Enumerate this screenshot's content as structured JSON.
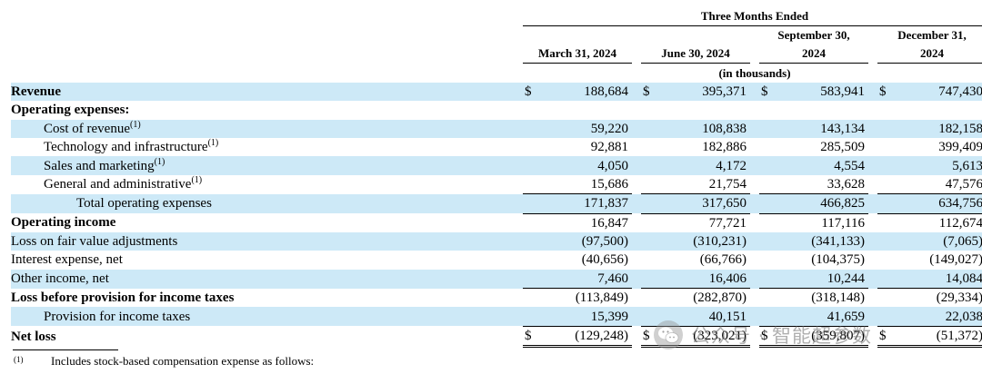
{
  "header": {
    "period_group": "Three Months Ended",
    "columns": [
      "March 31, 2024",
      "June 30, 2024",
      "September 30, 2024",
      "December 31, 2024"
    ],
    "col3_line1": "September 30,",
    "col3_line2": "2024",
    "col4_line1": "December 31,",
    "col4_line2": "2024",
    "units": "(in thousands)"
  },
  "rows": [
    {
      "label": "Revenue",
      "values": [
        "188,684",
        "395,371",
        "583,941",
        "747,430"
      ],
      "dollar": "$"
    },
    {
      "label": "Operating expenses:"
    },
    {
      "label": "Cost of revenue",
      "note": "(1)",
      "values": [
        "59,220",
        "108,838",
        "143,134",
        "182,158"
      ]
    },
    {
      "label": "Technology and infrastructure",
      "note": "(1)",
      "values": [
        "92,881",
        "182,886",
        "285,509",
        "399,409"
      ]
    },
    {
      "label": "Sales and marketing",
      "note": "(1)",
      "values": [
        "4,050",
        "4,172",
        "4,554",
        "5,613"
      ]
    },
    {
      "label": "General and administrative",
      "note": "(1)",
      "values": [
        "15,686",
        "21,754",
        "33,628",
        "47,576"
      ]
    },
    {
      "label": "Total operating expenses",
      "values": [
        "171,837",
        "317,650",
        "466,825",
        "634,756"
      ]
    },
    {
      "label": "Operating income",
      "values": [
        "16,847",
        "77,721",
        "117,116",
        "112,674"
      ]
    },
    {
      "label": "Loss on fair value adjustments",
      "values": [
        "(97,500)",
        "(310,231)",
        "(341,133)",
        "(7,065)"
      ]
    },
    {
      "label": "Interest expense, net",
      "values": [
        "(40,656)",
        "(66,766)",
        "(104,375)",
        "(149,027)"
      ]
    },
    {
      "label": "Other income, net",
      "values": [
        "7,460",
        "16,406",
        "10,244",
        "14,084"
      ]
    },
    {
      "label": "Loss before provision for income taxes",
      "values": [
        "(113,849)",
        "(282,870)",
        "(318,148)",
        "(29,334)"
      ]
    },
    {
      "label": "Provision for income taxes",
      "values": [
        "15,399",
        "40,151",
        "41,659",
        "22,038"
      ]
    },
    {
      "label": "Net loss",
      "values": [
        "(129,248)",
        "(323,021)",
        "(359,807)",
        "(51,372)"
      ],
      "dollar": "$"
    }
  ],
  "footnote": {
    "mark": "(1)",
    "text": "Includes stock-based compensation expense as follows:"
  },
  "watermark": {
    "text": "公众号 · 智能超参数",
    "icon": "wechat-icon"
  },
  "colors": {
    "row_highlight": "#cde9f7"
  }
}
